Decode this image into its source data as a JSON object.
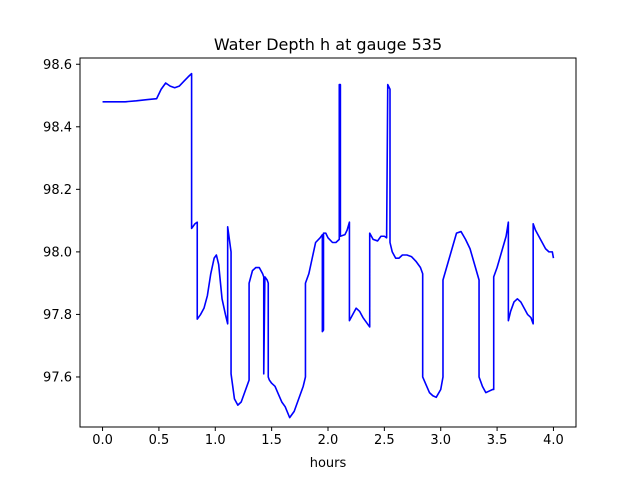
{
  "chart_data": {
    "type": "line",
    "title": "Water Depth h at gauge 535",
    "xlabel": "hours",
    "ylabel": "",
    "xlim": [
      -0.2,
      4.2
    ],
    "ylim": [
      97.44,
      98.62
    ],
    "xticks": [
      0.0,
      0.5,
      1.0,
      1.5,
      2.0,
      2.5,
      3.0,
      3.5,
      4.0
    ],
    "xtick_labels": [
      "0.0",
      "0.5",
      "1.0",
      "1.5",
      "2.0",
      "2.5",
      "3.0",
      "3.5",
      "4.0"
    ],
    "yticks": [
      97.6,
      97.8,
      98.0,
      98.2,
      98.4,
      98.6
    ],
    "ytick_labels": [
      "97.6",
      "97.8",
      "98.0",
      "98.2",
      "98.4",
      "98.6"
    ],
    "grid": false,
    "series": [
      {
        "color": "#0000ff",
        "x": [
          0.0,
          0.1,
          0.2,
          0.3,
          0.4,
          0.48,
          0.52,
          0.56,
          0.6,
          0.64,
          0.68,
          0.72,
          0.76,
          0.79,
          0.79,
          0.82,
          0.84,
          0.84,
          0.85,
          0.87,
          0.9,
          0.93,
          0.96,
          0.99,
          1.01,
          1.03,
          1.06,
          1.09,
          1.11,
          1.11,
          1.14,
          1.14,
          1.17,
          1.2,
          1.23,
          1.26,
          1.3,
          1.3,
          1.33,
          1.36,
          1.39,
          1.42,
          1.43,
          1.43,
          1.44,
          1.46,
          1.47,
          1.47,
          1.48,
          1.5,
          1.53,
          1.56,
          1.59,
          1.62,
          1.66,
          1.7,
          1.74,
          1.78,
          1.8,
          1.8,
          1.83,
          1.86,
          1.89,
          1.93,
          1.95,
          1.95,
          1.96,
          1.96,
          1.98,
          2.0,
          2.04,
          2.07,
          2.1,
          2.1,
          2.11,
          2.11,
          2.15,
          2.17,
          2.19,
          2.19,
          2.22,
          2.25,
          2.28,
          2.31,
          2.35,
          2.37,
          2.37,
          2.4,
          2.44,
          2.47,
          2.5,
          2.52,
          2.53,
          2.55,
          2.55,
          2.57,
          2.6,
          2.63,
          2.66,
          2.7,
          2.74,
          2.78,
          2.82,
          2.84,
          2.84,
          2.87,
          2.9,
          2.93,
          2.96,
          3.0,
          3.02,
          3.02,
          3.06,
          3.1,
          3.14,
          3.18,
          3.22,
          3.26,
          3.3,
          3.34,
          3.34,
          3.37,
          3.4,
          3.43,
          3.46,
          3.47,
          3.47,
          3.5,
          3.54,
          3.58,
          3.6,
          3.6,
          3.62,
          3.65,
          3.68,
          3.71,
          3.74,
          3.77,
          3.8,
          3.82,
          3.82,
          3.84,
          3.87,
          3.9,
          3.93,
          3.96,
          3.99,
          4.0
        ],
        "y": [
          98.48,
          98.48,
          98.48,
          98.483,
          98.487,
          98.49,
          98.52,
          98.54,
          98.53,
          98.525,
          98.53,
          98.545,
          98.56,
          98.57,
          98.075,
          98.09,
          98.095,
          97.785,
          97.79,
          97.8,
          97.82,
          97.86,
          97.93,
          97.98,
          97.99,
          97.96,
          97.85,
          97.8,
          97.77,
          98.08,
          98.0,
          97.61,
          97.53,
          97.51,
          97.52,
          97.55,
          97.59,
          97.9,
          97.94,
          97.95,
          97.95,
          97.93,
          97.92,
          97.61,
          97.92,
          97.91,
          97.9,
          97.6,
          97.59,
          97.58,
          97.57,
          97.545,
          97.52,
          97.505,
          97.47,
          97.49,
          97.53,
          97.57,
          97.6,
          97.9,
          97.93,
          97.98,
          98.03,
          98.045,
          98.055,
          97.745,
          97.75,
          98.06,
          98.06,
          98.045,
          98.03,
          98.03,
          98.04,
          98.535,
          98.535,
          98.05,
          98.055,
          98.07,
          98.095,
          97.78,
          97.8,
          97.82,
          97.81,
          97.79,
          97.77,
          97.76,
          98.06,
          98.04,
          98.035,
          98.05,
          98.05,
          98.045,
          98.535,
          98.52,
          98.03,
          98.0,
          97.98,
          97.98,
          97.99,
          97.99,
          97.985,
          97.97,
          97.95,
          97.93,
          97.6,
          97.575,
          97.55,
          97.54,
          97.535,
          97.56,
          97.6,
          97.91,
          97.96,
          98.01,
          98.06,
          98.065,
          98.04,
          98.01,
          97.96,
          97.91,
          97.6,
          97.57,
          97.55,
          97.555,
          97.56,
          97.56,
          97.92,
          97.95,
          98.0,
          98.05,
          98.095,
          97.78,
          97.81,
          97.84,
          97.85,
          97.84,
          97.82,
          97.8,
          97.79,
          97.77,
          98.09,
          98.07,
          98.05,
          98.03,
          98.01,
          98.0,
          98.0,
          97.98
        ]
      }
    ]
  }
}
